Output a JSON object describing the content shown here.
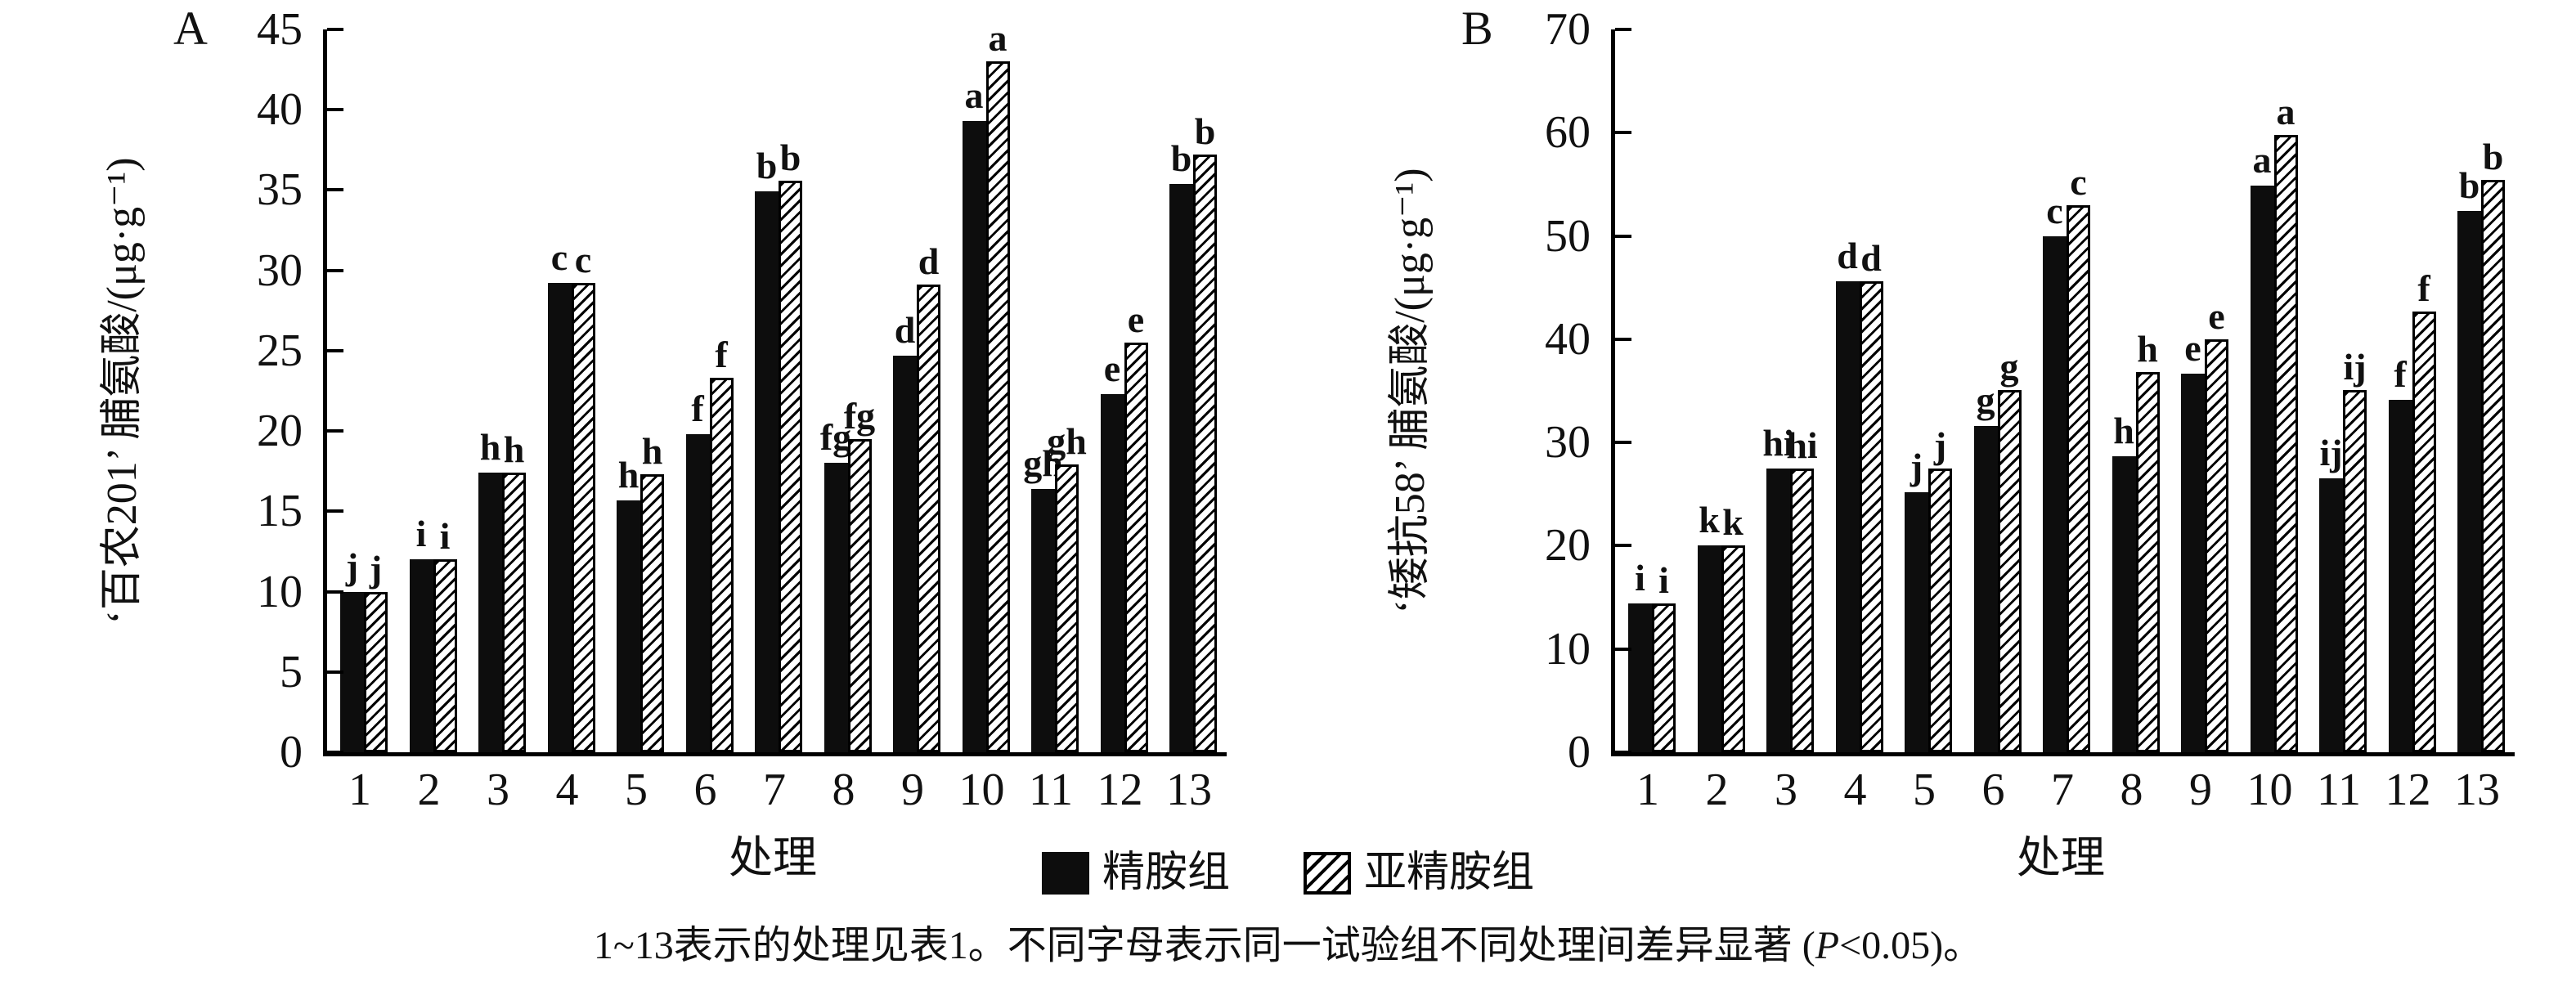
{
  "figure": {
    "legend": {
      "items": [
        {
          "label": "精胺组",
          "swatch": "solid-black"
        },
        {
          "label": "亚精胺组",
          "swatch": "hatched"
        }
      ]
    },
    "caption": {
      "prefix": "1~13表示的处理见表1。不同字母表示同一试验组不同处理间差异显著 (",
      "p_italic": "P",
      "suffix": "<0.05)。"
    }
  },
  "chart_data": [
    {
      "id": "A",
      "panel_label": "A",
      "type": "bar",
      "title": "",
      "ylabel": "‘百农201’ 脯氨酸/(μg·g⁻¹)",
      "xlabel": "处理",
      "ylim": [
        0,
        45
      ],
      "yticks": [
        0,
        5,
        10,
        15,
        20,
        25,
        30,
        35,
        40,
        45
      ],
      "grid": false,
      "categories": [
        "1",
        "2",
        "3",
        "4",
        "5",
        "6",
        "7",
        "8",
        "9",
        "10",
        "11",
        "12",
        "13"
      ],
      "series": [
        {
          "name": "精胺组",
          "pattern": "solid-black",
          "values": [
            10.0,
            12.0,
            17.4,
            29.2,
            15.7,
            19.8,
            34.9,
            18.0,
            24.7,
            39.3,
            16.4,
            22.3,
            35.4
          ],
          "sig_letters": [
            "j",
            "i",
            "h",
            "c",
            "h",
            "f",
            "b",
            "fg",
            "d",
            "a",
            "gh",
            "e",
            "b"
          ]
        },
        {
          "name": "亚精胺组",
          "pattern": "hatched",
          "values": [
            10.0,
            12.0,
            17.4,
            29.2,
            17.3,
            23.3,
            35.6,
            19.5,
            29.1,
            43.0,
            17.9,
            25.5,
            37.2
          ],
          "sig_letters": [
            "j",
            "i",
            "h",
            "c",
            "h",
            "f",
            "b",
            "fg",
            "d",
            "a",
            "gh",
            "e",
            "b"
          ]
        }
      ],
      "legend_position": "bottom-center"
    },
    {
      "id": "B",
      "panel_label": "B",
      "type": "bar",
      "title": "",
      "ylabel": "‘矮抗58’ 脯氨酸/(μg·g⁻¹)",
      "xlabel": "处理",
      "ylim": [
        0,
        70
      ],
      "yticks": [
        0,
        10,
        20,
        30,
        40,
        50,
        60,
        70
      ],
      "grid": false,
      "categories": [
        "1",
        "2",
        "3",
        "4",
        "5",
        "6",
        "7",
        "8",
        "9",
        "10",
        "11",
        "12",
        "13"
      ],
      "series": [
        {
          "name": "精胺组",
          "pattern": "solid-black",
          "values": [
            14.4,
            20.0,
            27.5,
            45.6,
            25.2,
            31.6,
            50.0,
            28.7,
            36.7,
            54.9,
            26.5,
            34.1,
            52.4
          ],
          "sig_letters": [
            "i",
            "k",
            "hi",
            "d",
            "j",
            "g",
            "c",
            "h",
            "e",
            "a",
            "ij",
            "f",
            "b"
          ]
        },
        {
          "name": "亚精胺组",
          "pattern": "hatched",
          "values": [
            14.4,
            20.0,
            27.5,
            45.6,
            27.5,
            35.1,
            53.0,
            36.8,
            40.0,
            59.8,
            35.1,
            42.7,
            55.4
          ],
          "sig_letters": [
            "i",
            "k",
            "hi",
            "d",
            "j",
            "g",
            "c",
            "h",
            "e",
            "a",
            "ij",
            "f",
            "b"
          ]
        }
      ],
      "legend_position": "bottom-center"
    }
  ]
}
